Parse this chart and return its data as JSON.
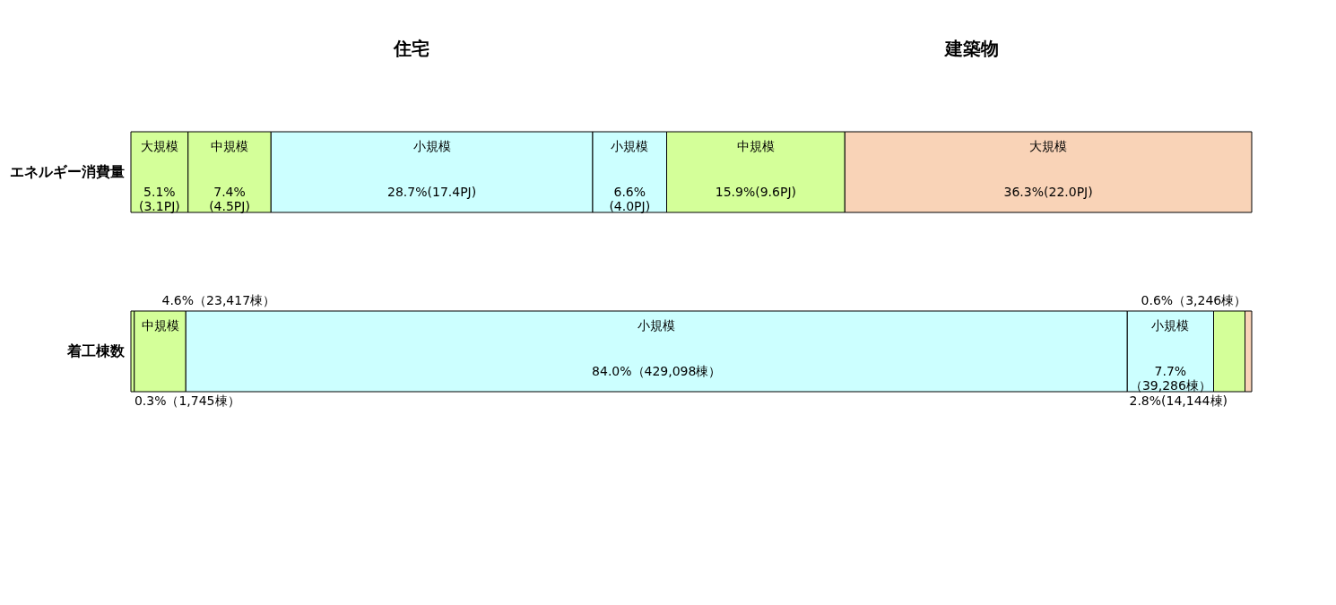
{
  "chart_data": {
    "type": "bar",
    "orientation": "horizontal",
    "stacked": true,
    "legend": false,
    "categories": [
      "エネルギー消費量",
      "着工棟数"
    ],
    "series": [
      {
        "name": "大規模",
        "color": "#d4ff99",
        "values": [
          5.1,
          0.3
        ],
        "value_labels": [
          "5.1%(3.1PJ)",
          "0.3%（1,745棟）"
        ]
      },
      {
        "name": "中規模",
        "color": "#d4ff99",
        "values": [
          7.4,
          4.6
        ],
        "value_labels": [
          "7.4%(4.5PJ)",
          "4.6%（23,417棟）"
        ]
      },
      {
        "name": "小規模",
        "color": "#ccffff",
        "values": [
          28.7,
          84.0
        ],
        "value_labels": [
          "28.7%(17.4PJ)",
          "84.0%（429,098棟）"
        ]
      },
      {
        "name": "小規模",
        "color": "#ccffff",
        "values": [
          6.6,
          7.7
        ],
        "value_labels": [
          "6.6%(4.0PJ)",
          "7.7%（39,286棟）"
        ]
      },
      {
        "name": "中規模",
        "color": "#d4ff99",
        "values": [
          15.9,
          2.8
        ],
        "value_labels": [
          "15.9%(9.6PJ)",
          "2.8%(14,144棟)"
        ]
      },
      {
        "name": "大規模",
        "color": "#f9d3b7",
        "values": [
          36.3,
          0.6
        ],
        "value_labels": [
          "36.3%(22.0PJ)",
          "0.6%（3,246棟）"
        ]
      }
    ],
    "annotations": [
      "住宅",
      "建築物"
    ]
  }
}
